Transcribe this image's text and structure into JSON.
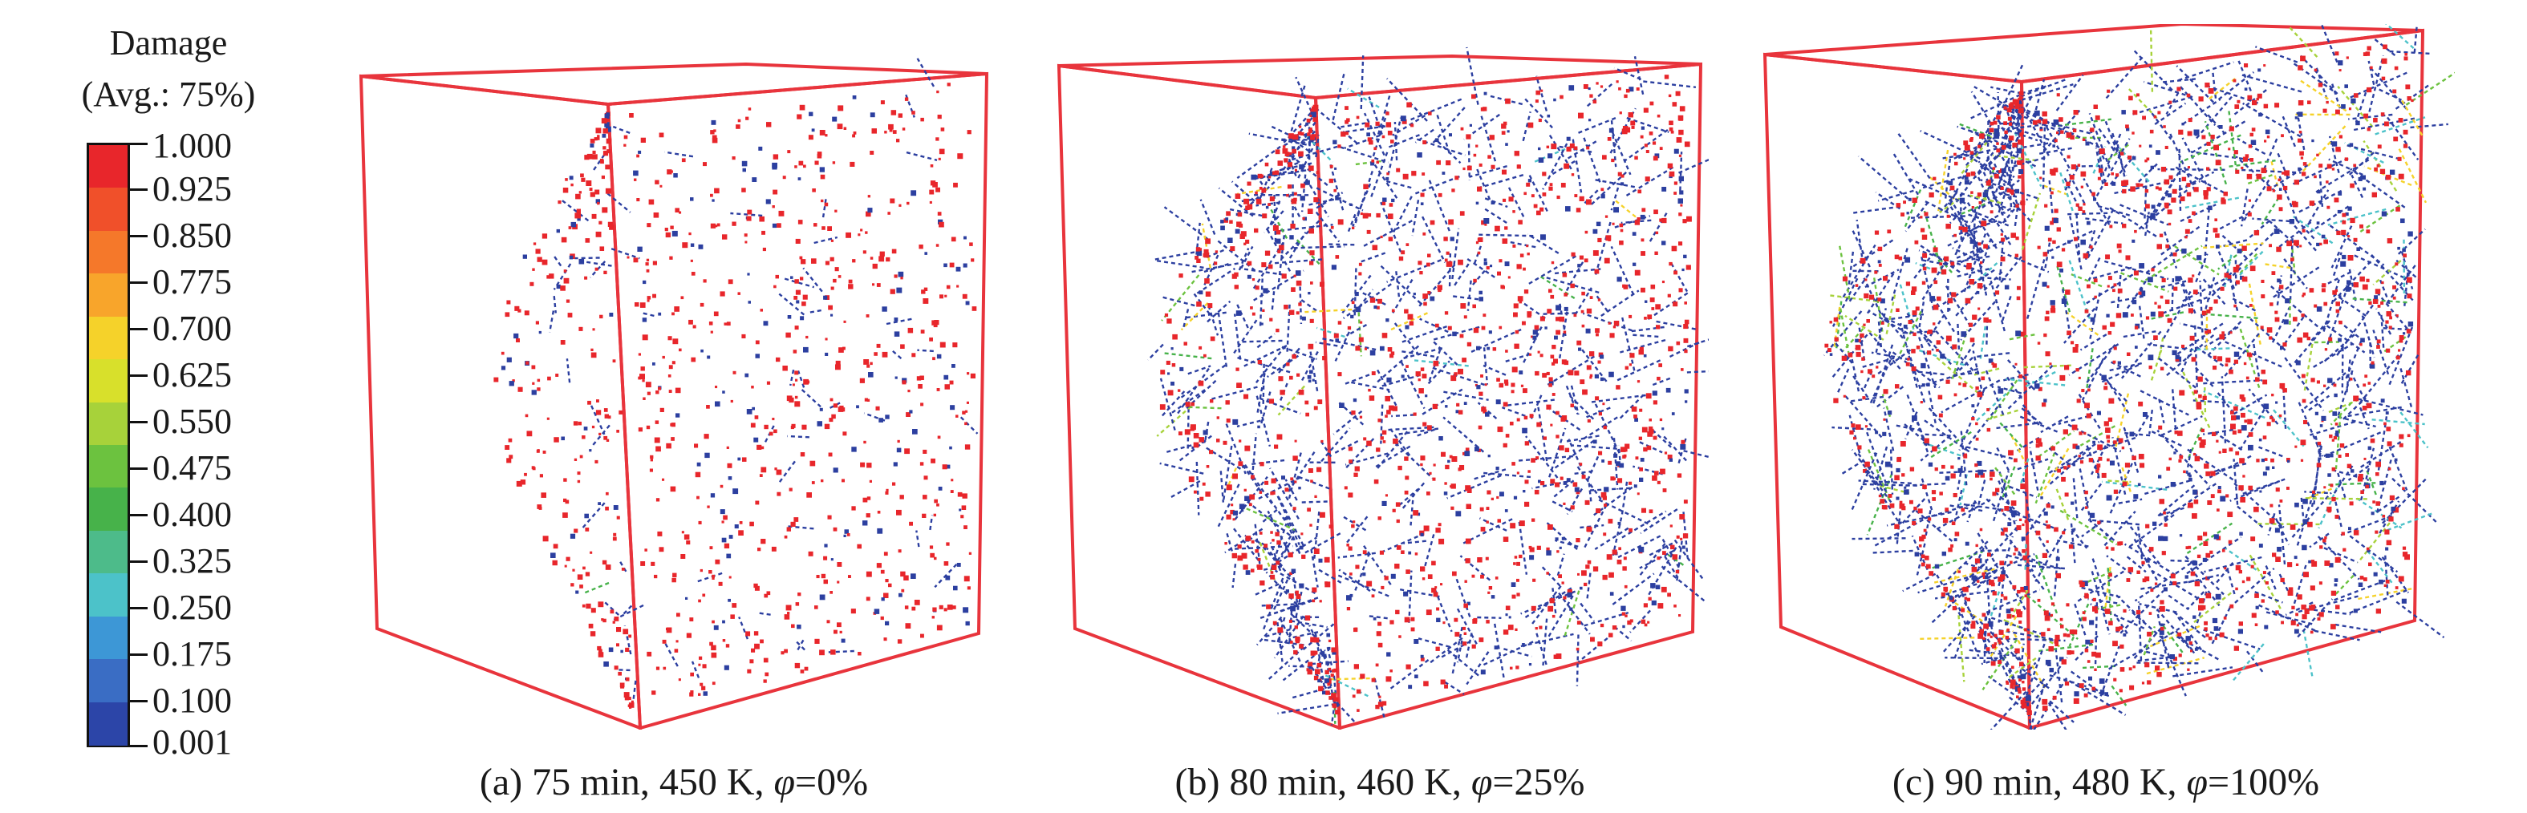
{
  "legend": {
    "title_line1": "Damage",
    "title_line2": "(Avg.: 75%)",
    "ticks": [
      "1.000",
      "0.925",
      "0.850",
      "0.775",
      "0.700",
      "0.625",
      "0.550",
      "0.475",
      "0.400",
      "0.325",
      "0.250",
      "0.175",
      "0.100",
      "0.001"
    ],
    "colors": [
      "#e8262b",
      "#f0502a",
      "#f5782a",
      "#f8a52b",
      "#f5d22a",
      "#d8e02b",
      "#a7d23a",
      "#6cc23f",
      "#47b24a",
      "#4dbb8a",
      "#4cc2c9",
      "#3d97d6",
      "#3a6dc4",
      "#2c45a8"
    ]
  },
  "panels": [
    {
      "caption_prefix": "(a) 75 min, 450 K, ",
      "caption_symbol": "φ",
      "caption_suffix": "=0%",
      "box_color": "#e8343c",
      "crack_color": "#2c3fa0",
      "damage_color": "#e8262b"
    },
    {
      "caption_prefix": "(b) 80 min, 460 K, ",
      "caption_symbol": "φ",
      "caption_suffix": "=25%",
      "box_color": "#e8343c",
      "crack_color": "#2c3fa0",
      "damage_color": "#e8262b"
    },
    {
      "caption_prefix": "(c) 90 min, 480 K, ",
      "caption_symbol": "φ",
      "caption_suffix": "=100%",
      "box_color": "#e8343c",
      "crack_color": "#2c3fa0",
      "damage_color": "#e8262b"
    }
  ]
}
